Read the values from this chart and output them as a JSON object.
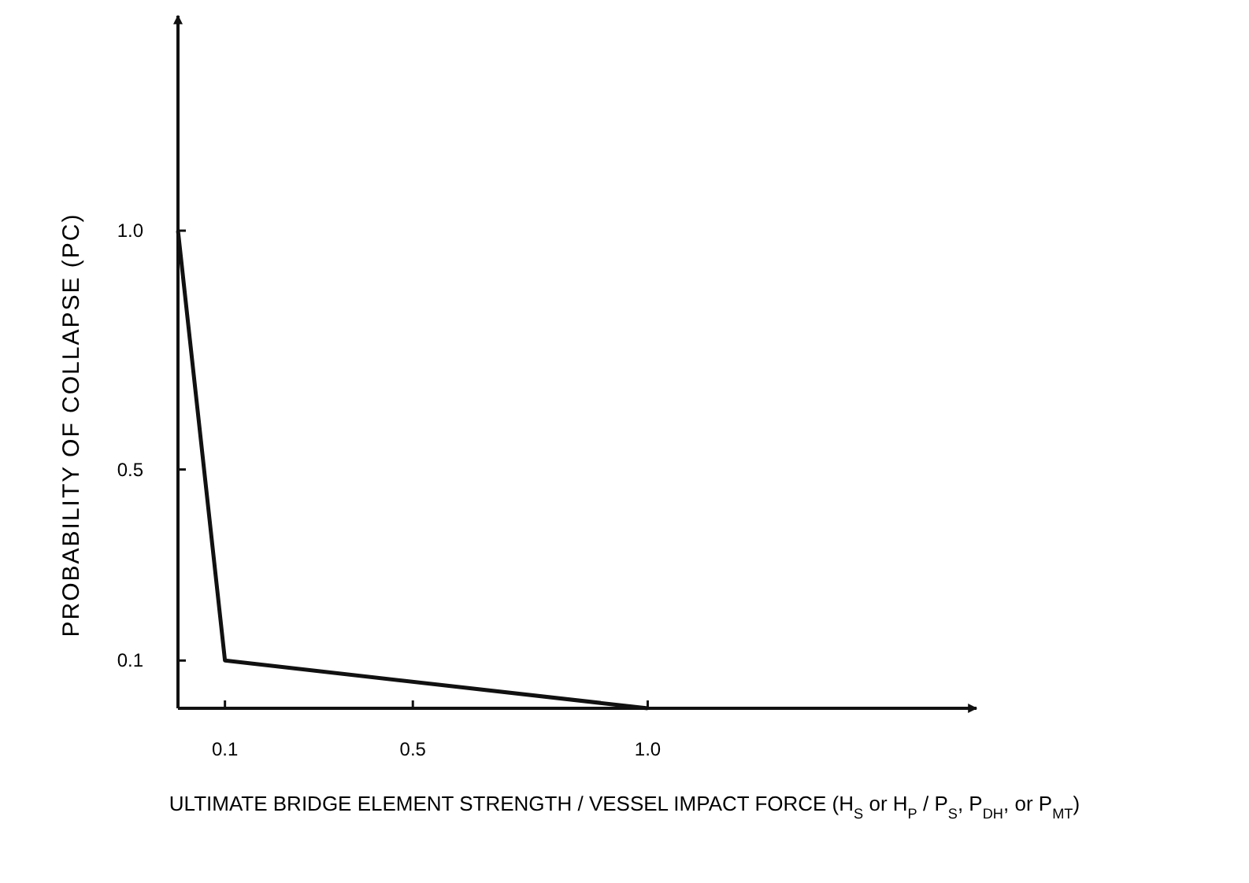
{
  "chart_data": {
    "type": "line",
    "xlabel": "ULTIMATE BRIDGE ELEMENT STRENGTH / VESSEL IMPACT FORCE (H$_{S}$ or H$_{P}$ / P$_{S}$, P$_{DH}$, or P$_{MT}$)",
    "ylabel": "PROBABILITY OF COLLAPSE (PC)",
    "x": [
      0,
      0.1,
      1
    ],
    "series": [
      {
        "color": "#111111",
        "values": [
          1.0,
          0.1,
          0
        ]
      }
    ],
    "xlim": [
      0,
      1.7
    ],
    "ylim": [
      0,
      1.45
    ],
    "xticks": [
      0.1,
      0.5,
      {
        "value": 1,
        "label": "1.0"
      }
    ],
    "yticks": [
      0.1,
      0.5,
      {
        "value": 1,
        "label": "1.0"
      }
    ],
    "grid": false,
    "marker": "none",
    "line_style": "solid"
  }
}
